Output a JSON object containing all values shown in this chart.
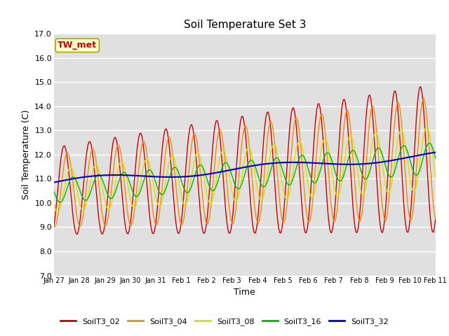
{
  "title": "Soil Temperature Set 3",
  "xlabel": "Time",
  "ylabel": "Soil Temperature (C)",
  "ylim": [
    7.0,
    17.0
  ],
  "yticks": [
    7.0,
    8.0,
    9.0,
    10.0,
    11.0,
    12.0,
    13.0,
    14.0,
    15.0,
    16.0,
    17.0
  ],
  "bg_color": "#e0e0e0",
  "colors": {
    "SoilT3_02": "#cc0000",
    "SoilT3_04": "#ff8800",
    "SoilT3_08": "#dddd00",
    "SoilT3_16": "#00bb00",
    "SoilT3_32": "#0000cc"
  },
  "annotation_text": "TW_met",
  "annotation_color": "#cc0000",
  "annotation_bg": "#ffffcc",
  "annotation_border": "#aaaa00",
  "x_tick_labels": [
    "Jan 27",
    "Jan 28",
    "Jan 29",
    "Jan 30",
    "Jan 31",
    "Feb 1",
    "Feb 2",
    "Feb 3",
    "Feb 4",
    "Feb 5",
    "Feb 6",
    "Feb 7",
    "Feb 8",
    "Feb 9",
    "Feb 10",
    "Feb 11"
  ],
  "n_days": 16
}
